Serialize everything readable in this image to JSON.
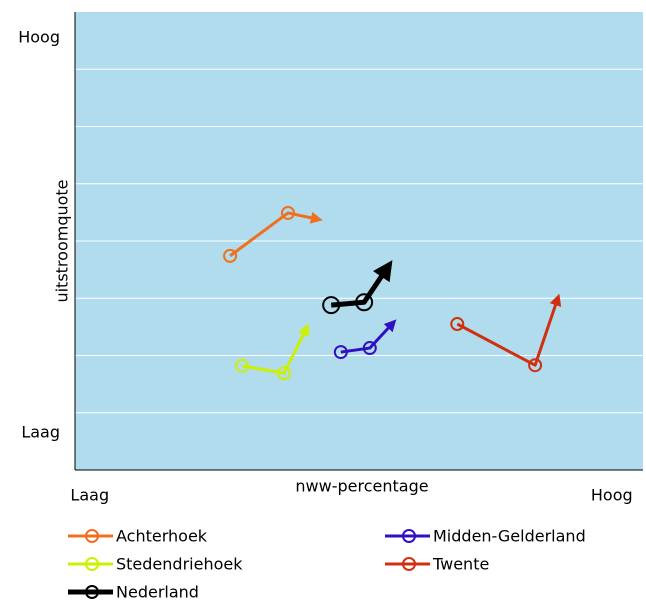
{
  "chart_data": {
    "type": "line",
    "xlabel": "nww-percentage",
    "ylabel": "uitstroomquote",
    "xlim": [
      0,
      100
    ],
    "ylim": [
      0,
      8
    ],
    "xticks": [
      {
        "value": 2.6,
        "label": "Laag"
      },
      {
        "value": 94.5,
        "label": "Hoog"
      }
    ],
    "yticks": [
      {
        "value": 0.65,
        "label": "Laag"
      },
      {
        "value": 7.55,
        "label": "Hoog"
      }
    ],
    "ygrid": [
      1,
      2,
      3,
      4,
      5,
      6,
      7
    ],
    "background": "#b0dcee",
    "series": [
      {
        "name": "Achterhoek",
        "color": "#f07020",
        "linewidth": 3,
        "x": [
          27.3,
          37.5,
          42.8
        ],
        "values": [
          3.74,
          4.49,
          4.38
        ]
      },
      {
        "name": "Midden-Gelderland",
        "color": "#3010c0",
        "linewidth": 3,
        "x": [
          46.8,
          51.9,
          56.0
        ],
        "values": [
          2.06,
          2.13,
          2.57
        ]
      },
      {
        "name": "Stedendriehoek",
        "color": "#ccf000",
        "linewidth": 3,
        "x": [
          29.4,
          36.8,
          40.8
        ],
        "values": [
          1.82,
          1.69,
          2.48
        ]
      },
      {
        "name": "Twente",
        "color": "#d03010",
        "linewidth": 3,
        "x": [
          67.3,
          81.0,
          85.0
        ],
        "values": [
          2.55,
          1.83,
          3.0
        ]
      },
      {
        "name": "Nederland",
        "color": "#000000",
        "linewidth": 5,
        "x": [
          45.1,
          50.9,
          55.1
        ],
        "values": [
          2.88,
          2.93,
          3.55
        ]
      }
    ]
  }
}
